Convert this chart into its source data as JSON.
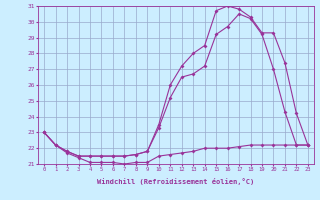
{
  "xlabel": "Windchill (Refroidissement éolien,°C)",
  "xlim": [
    -0.5,
    23.5
  ],
  "ylim": [
    21,
    31
  ],
  "yticks": [
    21,
    22,
    23,
    24,
    25,
    26,
    27,
    28,
    29,
    30,
    31
  ],
  "xticks": [
    0,
    1,
    2,
    3,
    4,
    5,
    6,
    7,
    8,
    9,
    10,
    11,
    12,
    13,
    14,
    15,
    16,
    17,
    18,
    19,
    20,
    21,
    22,
    23
  ],
  "bg_color": "#cceeff",
  "line_color": "#993399",
  "grid_color": "#99aacc",
  "line1_x": [
    0,
    1,
    2,
    3,
    4,
    5,
    6,
    7,
    8,
    9,
    10,
    11,
    12,
    13,
    14,
    15,
    16,
    17,
    18,
    19,
    20,
    21,
    22,
    23
  ],
  "line1_y": [
    23.0,
    22.2,
    21.7,
    21.4,
    21.1,
    21.1,
    21.1,
    21.0,
    21.1,
    21.1,
    21.5,
    21.6,
    21.7,
    21.8,
    22.0,
    22.0,
    22.0,
    22.1,
    22.2,
    22.2,
    22.2,
    22.2,
    22.2,
    22.2
  ],
  "line2_x": [
    0,
    1,
    2,
    3,
    4,
    5,
    6,
    7,
    8,
    9,
    10,
    11,
    12,
    13,
    14,
    15,
    16,
    17,
    18,
    19,
    20,
    21,
    22,
    23
  ],
  "line2_y": [
    23.0,
    22.2,
    21.8,
    21.5,
    21.5,
    21.5,
    21.5,
    21.5,
    21.6,
    21.8,
    23.3,
    25.2,
    26.5,
    26.7,
    27.2,
    29.2,
    29.7,
    30.5,
    30.2,
    29.2,
    27.0,
    24.3,
    22.2,
    22.2
  ],
  "line3_x": [
    0,
    1,
    2,
    3,
    4,
    5,
    6,
    7,
    8,
    9,
    10,
    11,
    12,
    13,
    14,
    15,
    16,
    17,
    18,
    19,
    20,
    21,
    22,
    23
  ],
  "line3_y": [
    23.0,
    22.2,
    21.8,
    21.5,
    21.5,
    21.5,
    21.5,
    21.5,
    21.6,
    21.8,
    23.5,
    26.0,
    27.2,
    28.0,
    28.5,
    30.7,
    31.0,
    30.8,
    30.3,
    29.3,
    29.3,
    27.4,
    24.2,
    22.2
  ]
}
